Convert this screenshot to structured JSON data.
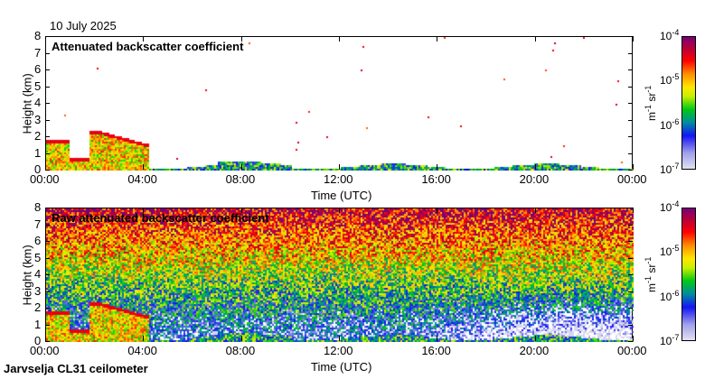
{
  "date": "10 July 2025",
  "footer": "Jarvselja CL31 ceilometer",
  "chart_data": [
    {
      "type": "heatmap",
      "title": "Attenuated backscatter coefficient",
      "xlabel": "Time (UTC)",
      "ylabel": "Height (km)",
      "xticks": [
        "00:00",
        "04:00",
        "08:00",
        "12:00",
        "16:00",
        "20:00",
        "00:00"
      ],
      "yticks": [
        "0",
        "1",
        "2",
        "3",
        "4",
        "5",
        "6",
        "7",
        "8"
      ],
      "xlim_hours": [
        0,
        24
      ],
      "ylim_km": [
        0,
        8
      ],
      "colorbar": {
        "label": "m-1 sr-1",
        "scale": "log",
        "range": [
          1e-07,
          0.0001
        ],
        "ticks": [
          "-7",
          "-6",
          "-5",
          "-4"
        ]
      },
      "features": [
        {
          "name": "low cloud / boundary layer",
          "time_hours": [
            0,
            4.2
          ],
          "height_km": [
            0,
            2.5
          ]
        },
        {
          "name": "boundary layer",
          "time_hours": [
            4.2,
            24
          ],
          "height_km": [
            0,
            0.5
          ]
        }
      ]
    },
    {
      "type": "heatmap",
      "title": "Raw attenuated backscatter coefficient",
      "xlabel": "Time (UTC)",
      "ylabel": "Height (km)",
      "xticks": [
        "00:00",
        "04:00",
        "08:00",
        "12:00",
        "16:00",
        "20:00",
        "00:00"
      ],
      "yticks": [
        "0",
        "1",
        "2",
        "3",
        "4",
        "5",
        "6",
        "7",
        "8"
      ],
      "xlim_hours": [
        0,
        24
      ],
      "ylim_km": [
        0,
        8
      ],
      "colorbar": {
        "label": "m-1 sr-1",
        "scale": "log",
        "range": [
          1e-07,
          0.0001
        ],
        "ticks": [
          "-7",
          "-6",
          "-5",
          "-4"
        ]
      }
    }
  ]
}
